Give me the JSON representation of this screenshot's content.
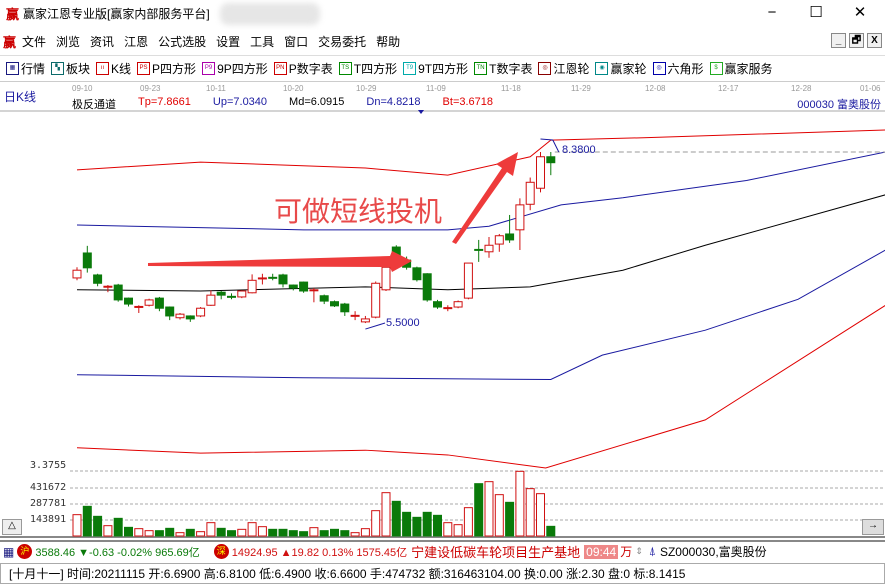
{
  "app": {
    "logo": "赢",
    "title": "赢家江恩专业版[赢家内部服务平台]",
    "minimize": "−",
    "maximize": "☐",
    "close": "✕"
  },
  "menu": {
    "logo": "赢",
    "items": [
      "文件",
      "浏览",
      "资讯",
      "江恩",
      "公式选股",
      "设置",
      "工具",
      "窗口",
      "交易委托",
      "帮助"
    ],
    "mdi": [
      "_",
      "🗗",
      "X"
    ]
  },
  "toolbar": {
    "items": [
      {
        "label": "行情",
        "icon": "grid-icon",
        "tag": "▦",
        "color": "#1a1a80"
      },
      {
        "label": "板块",
        "icon": "blocks-icon",
        "tag": "▚",
        "color": "#0a6a6a"
      },
      {
        "label": "K线",
        "icon": "candles-icon",
        "tag": "ıı",
        "color": "#c00"
      },
      {
        "label": "P四方形",
        "icon": "ps-icon",
        "tag": "PS",
        "color": "#c00"
      },
      {
        "label": "9P四方形",
        "icon": "p9-icon",
        "tag": "P9",
        "color": "#a0a"
      },
      {
        "label": "P数字表",
        "icon": "pn-icon",
        "tag": "PN",
        "color": "#c00"
      },
      {
        "label": "T四方形",
        "icon": "ts-icon",
        "tag": "TS",
        "color": "#080"
      },
      {
        "label": "9T四方形",
        "icon": "t9-icon",
        "tag": "T9",
        "color": "#0aa"
      },
      {
        "label": "T数字表",
        "icon": "tn-icon",
        "tag": "TN",
        "color": "#080"
      },
      {
        "label": "江恩轮",
        "icon": "wheel-icon",
        "tag": "◎",
        "color": "#800"
      },
      {
        "label": "赢家轮",
        "icon": "big-wheel-icon",
        "tag": "◉",
        "color": "#088"
      },
      {
        "label": "六角形",
        "icon": "hexagon-icon",
        "tag": "◎",
        "color": "#00a"
      },
      {
        "label": "赢家服务",
        "icon": "dollar-icon",
        "tag": "$",
        "color": "#2a2"
      }
    ]
  },
  "chart": {
    "period_label": "日K线",
    "dates": [
      "09-10",
      "09-23",
      "10-11",
      "10-20",
      "10-29",
      "11-09",
      "11-18",
      "11-29",
      "12-08",
      "12-17",
      "12-28",
      "01-06"
    ],
    "indicator": {
      "name": "极反通道",
      "tp": "Tp=7.8661",
      "up": "Up=7.0340",
      "md": "Md=6.0915",
      "dn": "Dn=4.8218",
      "bt": "Bt=3.6718"
    },
    "indicator_colors": {
      "tp": "#e00000",
      "up": "#1a1aa0",
      "md": "#000000",
      "dn": "#1a1aa0",
      "bt": "#e00000"
    },
    "stock": "000030 富奥股份",
    "high_label": "8.3800",
    "low_label": "5.5000",
    "annotation": "可做短线投机",
    "up_color": "#d01010",
    "down_color": "#0a7a0a",
    "volume_axis": [
      "3.3755",
      "431672",
      "287781",
      "143891"
    ],
    "scroll_left": "△",
    "scroll_right": "→"
  },
  "chart_data": {
    "type": "candlestick",
    "ohlc": [
      [
        6.26,
        6.44,
        6.22,
        6.39
      ],
      [
        6.68,
        6.8,
        6.35,
        6.43
      ],
      [
        6.31,
        6.33,
        6.12,
        6.17
      ],
      [
        6.11,
        6.14,
        6.02,
        6.12
      ],
      [
        6.14,
        6.16,
        5.86,
        5.89
      ],
      [
        5.92,
        5.93,
        5.78,
        5.82
      ],
      [
        5.77,
        5.8,
        5.67,
        5.78
      ],
      [
        5.8,
        5.91,
        5.78,
        5.89
      ],
      [
        5.92,
        5.94,
        5.7,
        5.75
      ],
      [
        5.77,
        5.78,
        5.55,
        5.62
      ],
      [
        5.59,
        5.67,
        5.56,
        5.65
      ],
      [
        5.62,
        5.63,
        5.52,
        5.57
      ],
      [
        5.62,
        5.77,
        5.6,
        5.75
      ],
      [
        5.8,
        6.05,
        5.79,
        5.97
      ],
      [
        6.02,
        6.04,
        5.9,
        5.97
      ],
      [
        5.95,
        6.0,
        5.9,
        5.94
      ],
      [
        5.94,
        6.05,
        5.92,
        6.04
      ],
      [
        6.01,
        6.32,
        6.0,
        6.22
      ],
      [
        6.25,
        6.33,
        6.15,
        6.26
      ],
      [
        6.27,
        6.33,
        6.22,
        6.26
      ],
      [
        6.31,
        6.33,
        6.1,
        6.16
      ],
      [
        6.14,
        6.15,
        6.05,
        6.09
      ],
      [
        6.19,
        6.2,
        6.01,
        6.04
      ],
      [
        6.05,
        6.09,
        5.85,
        6.06
      ],
      [
        5.96,
        5.98,
        5.82,
        5.87
      ],
      [
        5.86,
        5.88,
        5.77,
        5.79
      ],
      [
        5.82,
        5.84,
        5.62,
        5.69
      ],
      [
        5.62,
        5.7,
        5.55,
        5.63
      ],
      [
        5.52,
        5.62,
        5.5,
        5.57
      ],
      [
        5.6,
        6.2,
        5.58,
        6.17
      ],
      [
        6.06,
        6.52,
        6.04,
        6.44
      ],
      [
        6.78,
        6.81,
        6.45,
        6.53
      ],
      [
        6.56,
        6.62,
        6.4,
        6.44
      ],
      [
        6.43,
        6.45,
        6.2,
        6.23
      ],
      [
        6.33,
        6.34,
        5.86,
        5.89
      ],
      [
        5.86,
        5.89,
        5.74,
        5.77
      ],
      [
        5.75,
        5.8,
        5.7,
        5.76
      ],
      [
        5.77,
        5.88,
        5.75,
        5.86
      ],
      [
        5.92,
        6.51,
        5.9,
        6.51
      ],
      [
        6.74,
        6.9,
        6.53,
        6.73
      ],
      [
        6.7,
        6.95,
        6.6,
        6.81
      ],
      [
        6.83,
        7.0,
        6.7,
        6.97
      ],
      [
        7.0,
        7.32,
        6.85,
        6.9
      ],
      [
        7.07,
        7.6,
        6.73,
        7.49
      ],
      [
        7.5,
        7.95,
        7.4,
        7.87
      ],
      [
        7.77,
        8.38,
        7.7,
        8.3
      ],
      [
        8.3,
        8.38,
        7.99,
        8.2
      ]
    ],
    "volume": [
      191900,
      266800,
      176900,
      92900,
      158900,
      77900,
      66000,
      48000,
      48000,
      69000,
      30000,
      60000,
      39000,
      119900,
      69000,
      48000,
      60000,
      119900,
      83900,
      60000,
      60000,
      48000,
      39000,
      75000,
      48000,
      60000,
      48000,
      30000,
      66000,
      227800,
      389700,
      311800,
      212900,
      167900,
      212900,
      185900,
      119900,
      101900,
      254800,
      470700,
      488700,
      371800,
      302800,
      581600,
      425700,
      380700,
      86900
    ],
    "channel": {
      "tp": [
        [
          0,
          8.08
        ],
        [
          12,
          8.21
        ],
        [
          28,
          8.11
        ],
        [
          36,
          7.99
        ],
        [
          44,
          8.3
        ],
        [
          46,
          8.58
        ],
        [
          55,
          8.62
        ],
        [
          78.5,
          8.75
        ]
      ],
      "up": [
        [
          0,
          7.15
        ],
        [
          22,
          7.07
        ],
        [
          36,
          7.07
        ],
        [
          40,
          7.13
        ],
        [
          47,
          7.49
        ],
        [
          53,
          7.61
        ],
        [
          65,
          7.9
        ],
        [
          78.5,
          8.38
        ]
      ],
      "md": [
        [
          0,
          6.06
        ],
        [
          12,
          6.04
        ],
        [
          28,
          6.11
        ],
        [
          36,
          6.06
        ],
        [
          44,
          6.11
        ],
        [
          53,
          6.39
        ],
        [
          61,
          6.81
        ],
        [
          78.5,
          7.66
        ]
      ],
      "dn": [
        [
          0,
          4.63
        ],
        [
          22,
          4.58
        ],
        [
          46,
          4.55
        ],
        [
          51,
          4.96
        ],
        [
          61,
          5.38
        ],
        [
          70,
          5.9
        ],
        [
          78.5,
          6.73
        ]
      ],
      "bt": [
        [
          0,
          3.4
        ],
        [
          12,
          3.31
        ],
        [
          28,
          3.36
        ],
        [
          36,
          3.28
        ],
        [
          45.5,
          3.06
        ],
        [
          61,
          3.87
        ],
        [
          78.5,
          5.8
        ]
      ]
    }
  },
  "status": {
    "sh_badge": "沪",
    "sh": "3588.46 ▼-0.63 -0.02% 965.69亿",
    "sz_badge": "深",
    "sz": "14924.95 ▲19.82 0.13% 1575.45亿",
    "news": "宁建设低碳车轮项目生产基地",
    "time": "09:44",
    "unit": "万",
    "stock": "SZ000030,富奥股份",
    "bar": "[十月十一] 时间:20211115 开:6.6900 高:6.8100 低:6.4900 收:6.6600 手:474732 额:316463104.00 换:0.00 涨:2.30 盘:0 标:8.1415"
  }
}
